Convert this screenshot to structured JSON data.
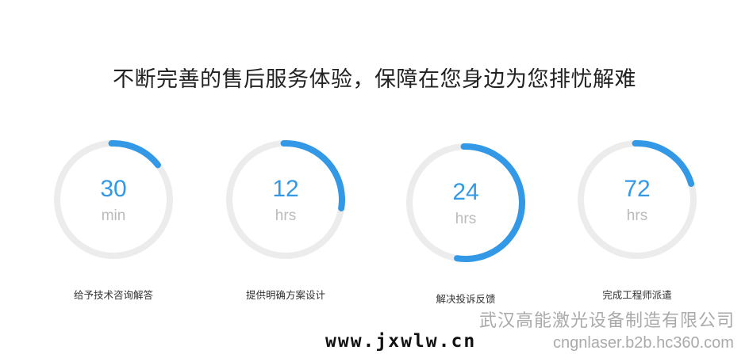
{
  "header": {
    "title": "不断完善的售后服务体验，保障在您身边为您排忧解难"
  },
  "colors": {
    "accent": "#3399e6",
    "track": "#ececec"
  },
  "stats": [
    {
      "value": "30",
      "unit": "min",
      "label": "给予技术咨询解答",
      "progress": 0.15
    },
    {
      "value": "12",
      "unit": "hrs",
      "label": "提供明确方案设计",
      "progress": 0.28
    },
    {
      "value": "24",
      "unit": "hrs",
      "label": "解决投诉反馈",
      "progress": 0.53
    },
    {
      "value": "72",
      "unit": "hrs",
      "label": "完成工程师派遣",
      "progress": 0.21
    }
  ],
  "watermark": {
    "site": "www.jxwlw.cn",
    "company": "武汉高能激光设备制造有限公司",
    "url": "cngnlaser.b2b.hc360.com"
  }
}
